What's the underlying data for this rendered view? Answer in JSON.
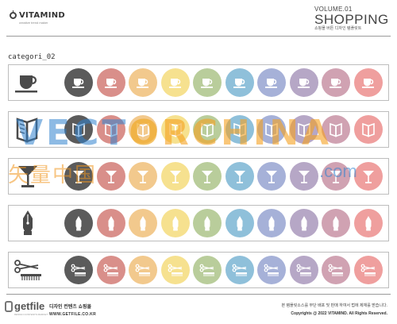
{
  "brand": {
    "name": "VITAMIND",
    "tagline": "creative trend maker"
  },
  "volume": {
    "label": "VOLUME.01",
    "title": "SHOPPING",
    "subtitle": "쇼핑몰 버튼 디자인 템플릿트"
  },
  "category_label": "categori_02",
  "palette": {
    "white_circles": [
      "#5b5b5b",
      "#d98f8a",
      "#f2c98d",
      "#f6e18f",
      "#b9cd9b",
      "#8fc0da",
      "#a6b1d8",
      "#b6a7c6",
      "#d0a2b2",
      "#ef9f9e"
    ],
    "icon_colors": [
      "#ffffff",
      "#ffffff",
      "#ffffff",
      "#ffffff",
      "#ffffff",
      "#ffffff",
      "#ffffff",
      "#ffffff",
      "#ffffff",
      "#ffffff"
    ]
  },
  "rows": [
    {
      "icon": "coffee-cup-icon"
    },
    {
      "icon": "brochure-icon"
    },
    {
      "icon": "cocktail-glass-icon"
    },
    {
      "icon": "fountain-pen-nib-icon"
    },
    {
      "icon": "scissors-comb-icon"
    }
  ],
  "watermark": {
    "main": "VECT",
    "o": "O",
    "rest": "RCHINA",
    "cn": "矢量中国",
    "com": ".com"
  },
  "footer": {
    "getfile": "getfile",
    "getfile_sub": "DESIGN CONTENTS MARKET",
    "design_title": "디자인 컨텐츠 쇼핑몰",
    "design_url": "WWW.GETFILE.CO.KR",
    "notice": "본 템플릿소스를 무단 배포 및 판매 하여서 법에 제재를 받습니다.",
    "copyright": "Copyrights @ 2022 VITAMIND. All Rights Reserved."
  }
}
